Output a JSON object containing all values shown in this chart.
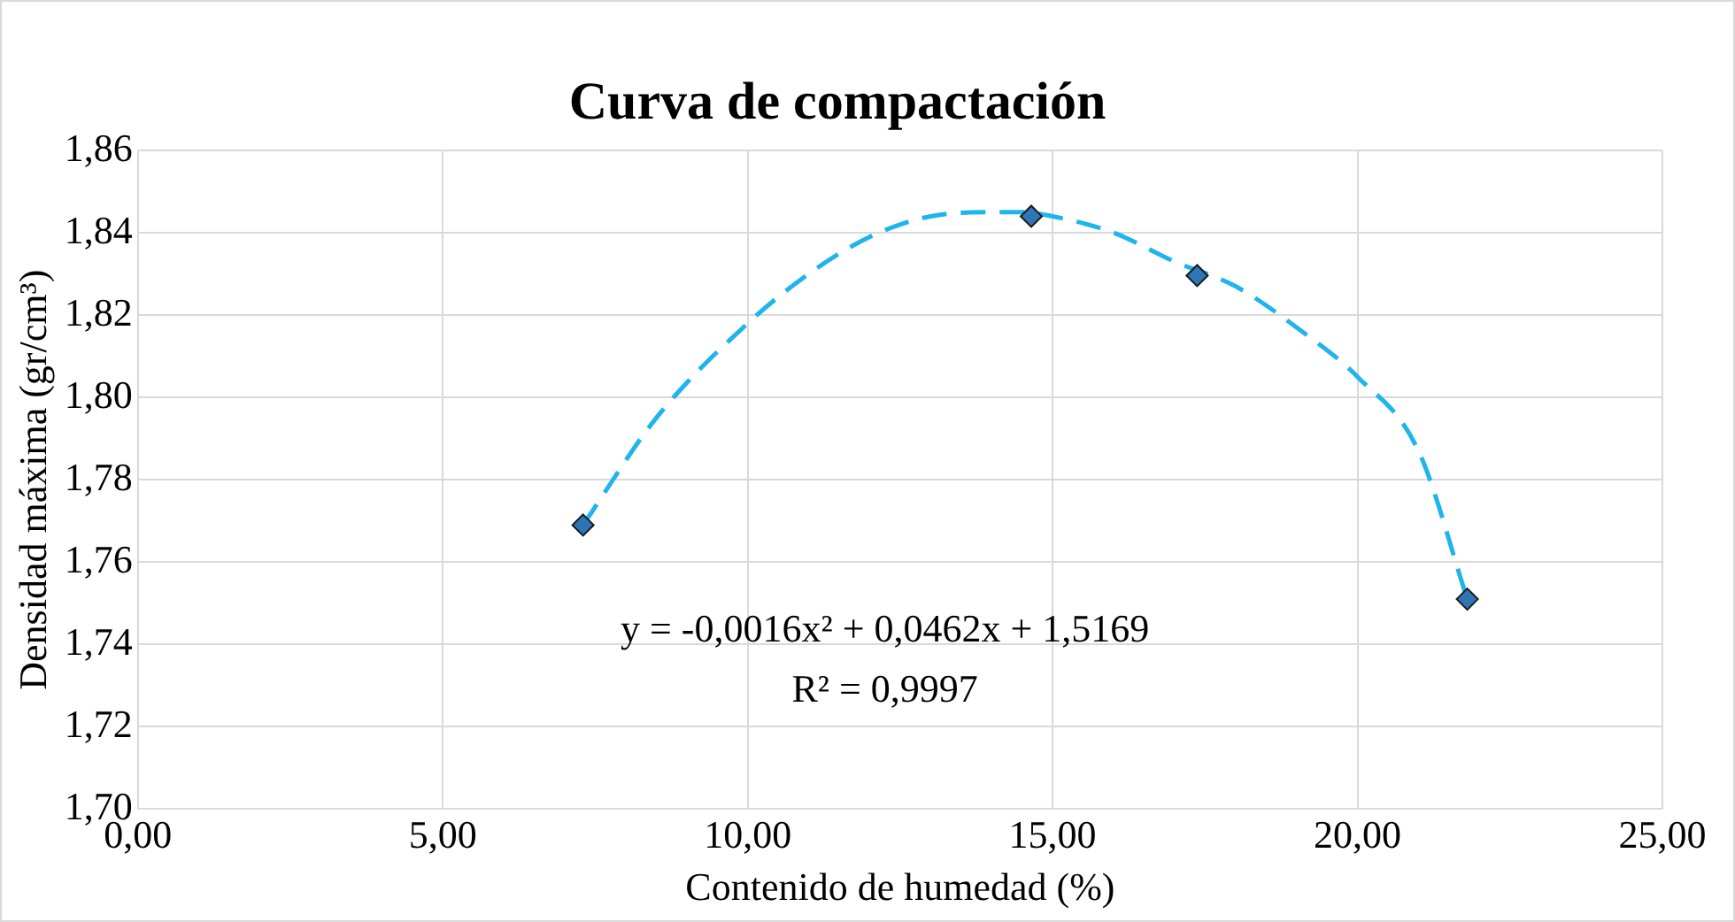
{
  "chart_data": {
    "type": "scatter",
    "title": "Curva de compactación",
    "xlabel": "Contenido de humedad (%)",
    "ylabel": "Densidad máxima (gr/cm³)",
    "series": [
      {
        "type": "scatter",
        "color": "#2e75b6",
        "marker": "diamond",
        "x": [
          7.3,
          14.65,
          17.37,
          21.8
        ],
        "values": [
          1.769,
          1.844,
          1.8296,
          1.751
        ]
      },
      {
        "type": "line",
        "color": "#1fb4ec",
        "marker": "none",
        "line_style": "dashed",
        "x": [
          7.3,
          8.5,
          10,
          11,
          12,
          13,
          14,
          14.5,
          15,
          16,
          17,
          18,
          19,
          20,
          21,
          21.8
        ],
        "values": [
          1.769,
          1.795,
          1.818,
          1.83,
          1.839,
          1.844,
          1.845,
          1.845,
          1.844,
          1.84,
          1.833,
          1.827,
          1.817,
          1.805,
          1.787,
          1.751
        ]
      }
    ],
    "xlim": [
      0,
      25
    ],
    "xticks": [
      {
        "value": 0,
        "label": "0,00"
      },
      {
        "value": 5,
        "label": "5,00"
      },
      {
        "value": 10,
        "label": "10,00"
      },
      {
        "value": 15,
        "label": "15,00"
      },
      {
        "value": 20,
        "label": "20,00"
      },
      {
        "value": 25,
        "label": "25,00"
      }
    ],
    "ylim": [
      1.7,
      1.86
    ],
    "yticks": [
      {
        "value": 1.7,
        "label": "1,70"
      },
      {
        "value": 1.72,
        "label": "1,72"
      },
      {
        "value": 1.74,
        "label": "1,74"
      },
      {
        "value": 1.76,
        "label": "1,76"
      },
      {
        "value": 1.78,
        "label": "1,78"
      },
      {
        "value": 1.8,
        "label": "1,80"
      },
      {
        "value": 1.82,
        "label": "1,82"
      },
      {
        "value": 1.84,
        "label": "1,84"
      },
      {
        "value": 1.86,
        "label": "1,86"
      }
    ],
    "grid": true,
    "legend": false,
    "annotations": [
      "y = -0,0016x² + 0,0462x + 1,5169",
      "R² = 0,9997"
    ]
  }
}
